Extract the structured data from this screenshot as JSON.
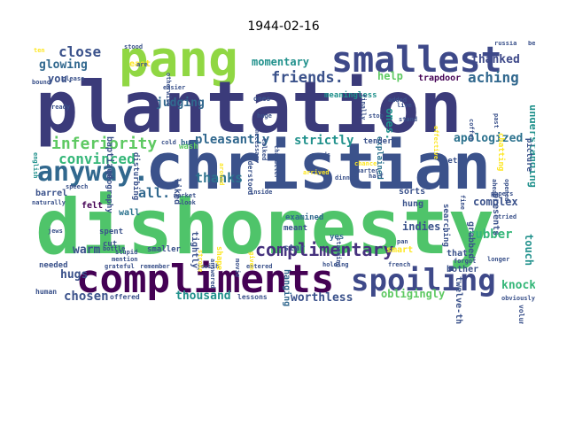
{
  "title": "1944-02-16",
  "palette": [
    "#440154",
    "#3b528b",
    "#21918c",
    "#5ec962",
    "#fde725",
    "#31688e",
    "#35b779",
    "#90d743"
  ],
  "words": [
    {
      "text": "pang",
      "color": "#90d743"
    },
    {
      "text": "plantation",
      "color": "#3b3b7a"
    },
    {
      "text": "smallest",
      "color": "#3e4989"
    },
    {
      "text": "christian",
      "color": "#3b528b"
    },
    {
      "text": "anyway.",
      "color": "#31688e"
    },
    {
      "text": "dishonesty",
      "color": "#4fc46a"
    },
    {
      "text": "compliments",
      "color": "#440154"
    },
    {
      "text": "spoiling",
      "color": "#3e4989"
    },
    {
      "text": "complimentary",
      "color": "#46327e"
    },
    {
      "text": "inferiority",
      "color": "#5ec962"
    },
    {
      "text": "convinced",
      "color": "#35b779"
    },
    {
      "text": "close",
      "color": "#3b528b"
    },
    {
      "text": "glowing",
      "color": "#31688e"
    },
    {
      "text": "momentary",
      "color": "#21918c"
    },
    {
      "text": "friends.",
      "color": "#3b528b"
    },
    {
      "text": "aching",
      "color": "#31688e"
    },
    {
      "text": "thanked",
      "color": "#3e4989"
    },
    {
      "text": "pleasantly",
      "color": "#31688e"
    },
    {
      "text": "strictly",
      "color": "#21918c"
    },
    {
      "text": "apologized",
      "color": "#2c728e"
    },
    {
      "text": "understanding",
      "color": "#21918c"
    },
    {
      "text": "thanks",
      "color": "#2c728e"
    },
    {
      "text": "all.",
      "color": "#31688e"
    },
    {
      "text": "judging",
      "color": "#31688e"
    },
    {
      "text": "you.",
      "color": "#3b528b"
    },
    {
      "text": "help",
      "color": "#5ec962"
    },
    {
      "text": "ones.",
      "color": "#21918c"
    },
    {
      "text": "complex",
      "color": "#3b528b"
    },
    {
      "text": "touch",
      "color": "#21918c"
    },
    {
      "text": "rubber",
      "color": "#35b779"
    },
    {
      "text": "knock",
      "color": "#35b779"
    },
    {
      "text": "worthless",
      "color": "#3b528b"
    },
    {
      "text": "obligingly",
      "color": "#5ec962"
    },
    {
      "text": "indies.",
      "color": "#3b528b"
    },
    {
      "text": "chosen",
      "color": "#3b528b"
    },
    {
      "text": "thousand",
      "color": "#21918c"
    },
    {
      "text": "hugs",
      "color": "#3b528b"
    },
    {
      "text": "warm",
      "color": "#3b528b"
    },
    {
      "text": "barrel",
      "color": "#3b528b"
    },
    {
      "text": "felt",
      "color": "#440154"
    },
    {
      "text": "wall",
      "color": "#2c728e"
    },
    {
      "text": "tightly",
      "color": "#3b528b"
    },
    {
      "text": "baptized",
      "color": "#3b528b"
    },
    {
      "text": "liked",
      "color": "#3b528b"
    },
    {
      "text": "hanging",
      "color": "#31688e"
    },
    {
      "text": "hung",
      "color": "#3b528b"
    },
    {
      "text": "sorts",
      "color": "#3b528b"
    },
    {
      "text": "grabbed",
      "color": "#3b528b"
    },
    {
      "text": "that.",
      "color": "#3b528b"
    },
    {
      "text": "smart",
      "color": "#fde725"
    },
    {
      "text": "twelve-thirty",
      "color": "#3b528b"
    },
    {
      "text": "searching",
      "color": "#3b528b"
    },
    {
      "text": "trapdoor",
      "color": "#440154"
    },
    {
      "text": "explained",
      "color": "#2c728e"
    },
    {
      "text": "examined",
      "color": "#31688e"
    },
    {
      "text": "meant",
      "color": "#3b528b"
    },
    {
      "text": "star",
      "color": "#3b528b"
    },
    {
      "text": "bother",
      "color": "#3b528b"
    },
    {
      "text": "yes",
      "color": "#31688e"
    },
    {
      "text": "meaningless",
      "color": "#21918c"
    },
    {
      "text": "east",
      "color": "#fde725"
    },
    {
      "text": "stood",
      "color": "#3b528b"
    },
    {
      "text": "russia",
      "color": "#3b528b"
    },
    {
      "text": "become",
      "color": "#3b528b"
    },
    {
      "text": "geography",
      "color": "#3b528b"
    },
    {
      "text": "disturbing",
      "color": "#3b528b"
    },
    {
      "text": "understood",
      "color": "#3b528b"
    },
    {
      "text": "presents",
      "color": "#3b528b"
    },
    {
      "text": "picture",
      "color": "#3b528b"
    },
    {
      "text": "chatting",
      "color": "#fde725"
    },
    {
      "text": "bun",
      "color": "#31688e"
    },
    {
      "text": "wash",
      "color": "#5ec962"
    },
    {
      "text": "spent",
      "color": "#3b528b"
    },
    {
      "text": "cut",
      "color": "#3b528b"
    },
    {
      "text": "smaller",
      "color": "#3b528b"
    },
    {
      "text": "needed",
      "color": "#3b528b"
    },
    {
      "text": "human",
      "color": "#3b528b"
    },
    {
      "text": "offered",
      "color": "#3b528b"
    },
    {
      "text": "lessons",
      "color": "#3b528b"
    },
    {
      "text": "tender",
      "color": "#3b528b"
    },
    {
      "text": "let",
      "color": "#3b528b"
    },
    {
      "text": "ones",
      "color": "#3b528b"
    },
    {
      "text": "huge",
      "color": "#3b528b"
    },
    {
      "text": "easier",
      "color": "#3b528b"
    },
    {
      "text": "ready",
      "color": "#3b528b"
    },
    {
      "text": "bound",
      "color": "#3b528b"
    },
    {
      "text": "english",
      "color": "#21918c"
    },
    {
      "text": "speech",
      "color": "#3b528b"
    },
    {
      "text": "naturally",
      "color": "#3b528b"
    },
    {
      "text": "jews",
      "color": "#3b528b"
    },
    {
      "text": "stupid",
      "color": "#3b528b"
    },
    {
      "text": "mention",
      "color": "#3b528b"
    },
    {
      "text": "grateful",
      "color": "#3b528b"
    },
    {
      "text": "remember",
      "color": "#3b528b"
    },
    {
      "text": "jewish",
      "color": "#3b528b"
    },
    {
      "text": "entered",
      "color": "#3b528b"
    },
    {
      "text": "holding",
      "color": "#3b528b"
    },
    {
      "text": "longer",
      "color": "#3b528b"
    },
    {
      "text": "obviously",
      "color": "#3b528b"
    },
    {
      "text": "volunteered",
      "color": "#3b528b"
    },
    {
      "text": "tried",
      "color": "#3b528b"
    },
    {
      "text": "papers",
      "color": "#3b528b"
    },
    {
      "text": "forgot",
      "color": "#3b528b"
    },
    {
      "text": "french",
      "color": "#3b528b"
    },
    {
      "text": "pan",
      "color": "#3b528b"
    },
    {
      "text": "standing",
      "color": "#3b528b"
    },
    {
      "text": "movie",
      "color": "#3b528b"
    },
    {
      "text": "given",
      "color": "#fde725"
    },
    {
      "text": "inside",
      "color": "#3b528b"
    },
    {
      "text": "market",
      "color": "#3b528b"
    },
    {
      "text": "look",
      "color": "#3b528b"
    },
    {
      "text": "cold",
      "color": "#3b528b"
    },
    {
      "text": "talked",
      "color": "#3b528b"
    },
    {
      "text": "character",
      "color": "#3b528b"
    },
    {
      "text": "arrived",
      "color": "#fde725"
    },
    {
      "text": "needs",
      "color": "#3b528b"
    },
    {
      "text": "chance",
      "color": "#fde725"
    },
    {
      "text": "half",
      "color": "#3b528b"
    },
    {
      "text": "fine",
      "color": "#3b528b"
    },
    {
      "text": "stop",
      "color": "#3b528b"
    },
    {
      "text": "live",
      "color": "#3b528b"
    },
    {
      "text": "added",
      "color": "#3b528b"
    },
    {
      "text": "effective",
      "color": "#fde725"
    },
    {
      "text": "coffee",
      "color": "#3b528b"
    },
    {
      "text": "past",
      "color": "#3b528b"
    },
    {
      "text": "ahead",
      "color": "#3b528b"
    },
    {
      "text": "opened",
      "color": "#3b528b"
    },
    {
      "text": "please",
      "color": "#3b528b"
    },
    {
      "text": "ten",
      "color": "#fde725"
    },
    {
      "text": "stand",
      "color": "#3b528b"
    },
    {
      "text": "quarter",
      "color": "#3b528b"
    },
    {
      "text": "dinner",
      "color": "#3b528b"
    },
    {
      "text": "finally",
      "color": "#3b528b"
    },
    {
      "text": "otherwise",
      "color": "#3b528b"
    },
    {
      "text": "bottle",
      "color": "#3b528b"
    },
    {
      "text": "answered",
      "color": "#3b528b"
    },
    {
      "text": "shape",
      "color": "#fde725"
    },
    {
      "text": "stroke",
      "color": "#fde725"
    },
    {
      "text": "around",
      "color": "#fde725"
    },
    {
      "text": "are",
      "color": "#3b528b"
    },
    {
      "text": "necessary",
      "color": "#3b528b"
    }
  ]
}
